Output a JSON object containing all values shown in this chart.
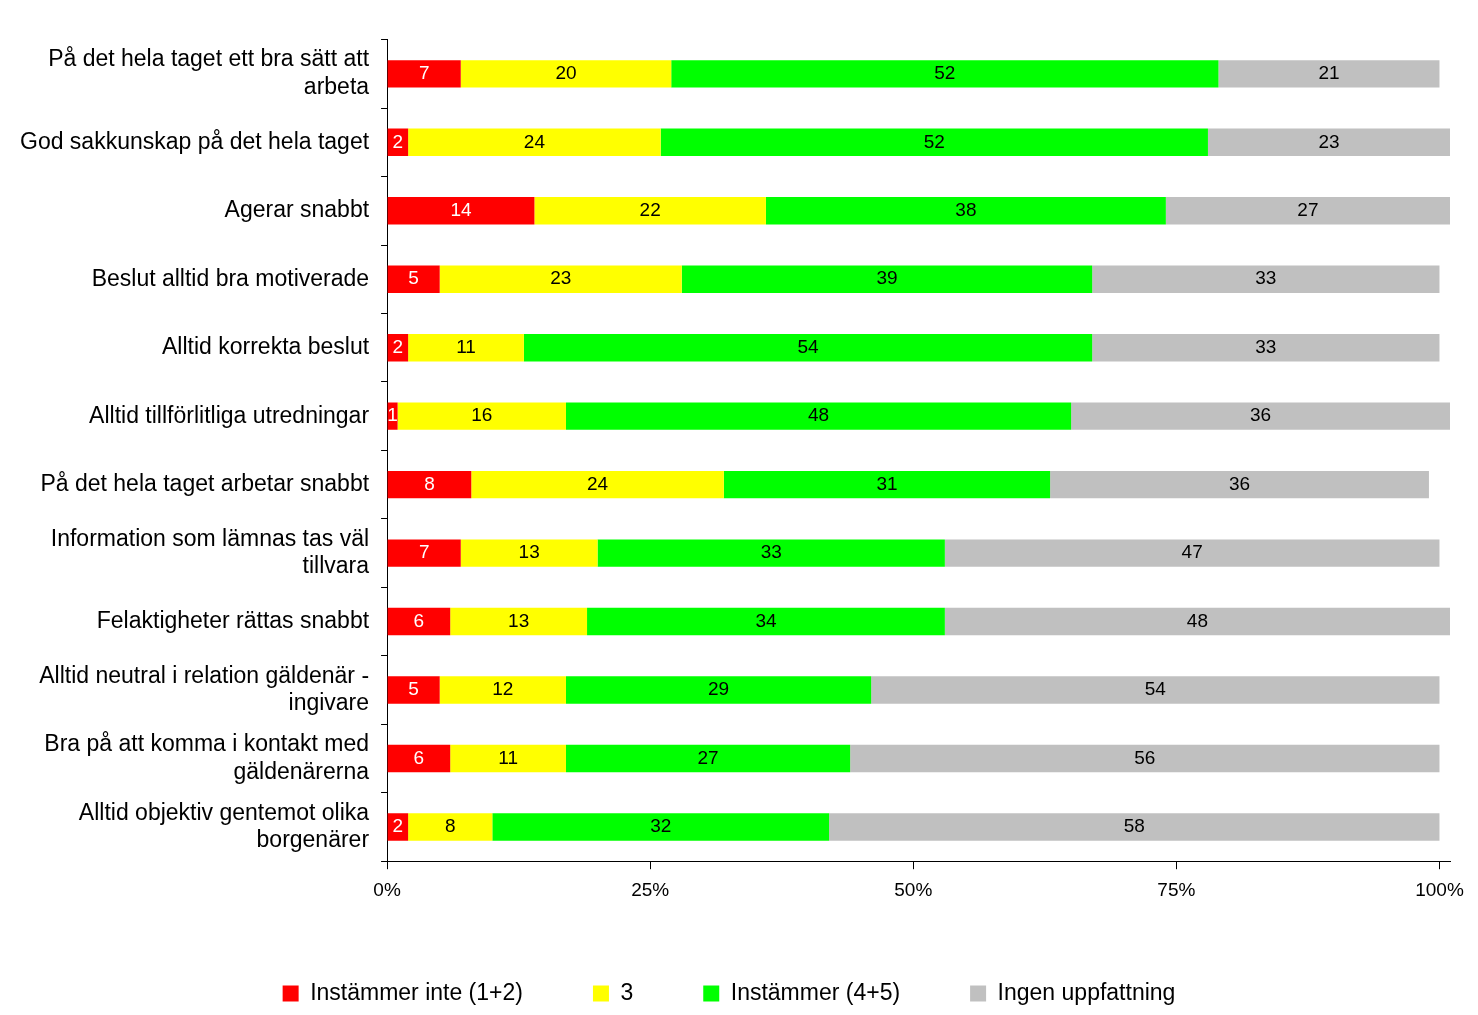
{
  "chart_data": {
    "type": "bar",
    "orientation": "horizontal",
    "stacked": true,
    "data_labels": true,
    "grid": false,
    "legend": "bottom",
    "categories": [
      "På det hela taget ett bra sätt att arbeta",
      "God sakkunskap på det hela taget",
      "Agerar snabbt",
      "Beslut alltid bra motiverade",
      "Alltid korrekta beslut",
      "Alltid tillförlitliga utredningar",
      "På det hela taget arbetar snabbt",
      "Information som lämnas tas väl tillvara",
      "Felaktigheter rättas snabbt",
      "Alltid neutral i relation gäldenär - ingivare",
      "Bra på att komma i kontakt med gäldenärerna",
      "Alltid objektiv gentemot olika borgenärer"
    ],
    "series": [
      {
        "name": "Instämmer inte (1+2)",
        "color": "#ff0000",
        "values": [
          7,
          2,
          14,
          5,
          2,
          1,
          8,
          7,
          6,
          5,
          6,
          2
        ]
      },
      {
        "name": "3",
        "color": "#ffff00",
        "values": [
          20,
          24,
          22,
          23,
          11,
          16,
          24,
          13,
          13,
          12,
          11,
          8
        ]
      },
      {
        "name": "Instämmer (4+5)",
        "color": "#00ff00",
        "values": [
          52,
          52,
          38,
          39,
          54,
          48,
          31,
          33,
          34,
          29,
          27,
          32
        ]
      },
      {
        "name": "Ingen uppfattning",
        "color": "#c0c0c0",
        "values": [
          21,
          23,
          27,
          33,
          33,
          36,
          36,
          47,
          48,
          54,
          56,
          58
        ]
      }
    ],
    "xlim": [
      0,
      101
    ],
    "xticks": [
      {
        "value": 0,
        "label": "0%"
      },
      {
        "value": 25,
        "label": "25%"
      },
      {
        "value": 50,
        "label": "50%"
      },
      {
        "value": 75,
        "label": "75%"
      },
      {
        "value": 100,
        "label": "100%"
      }
    ]
  }
}
